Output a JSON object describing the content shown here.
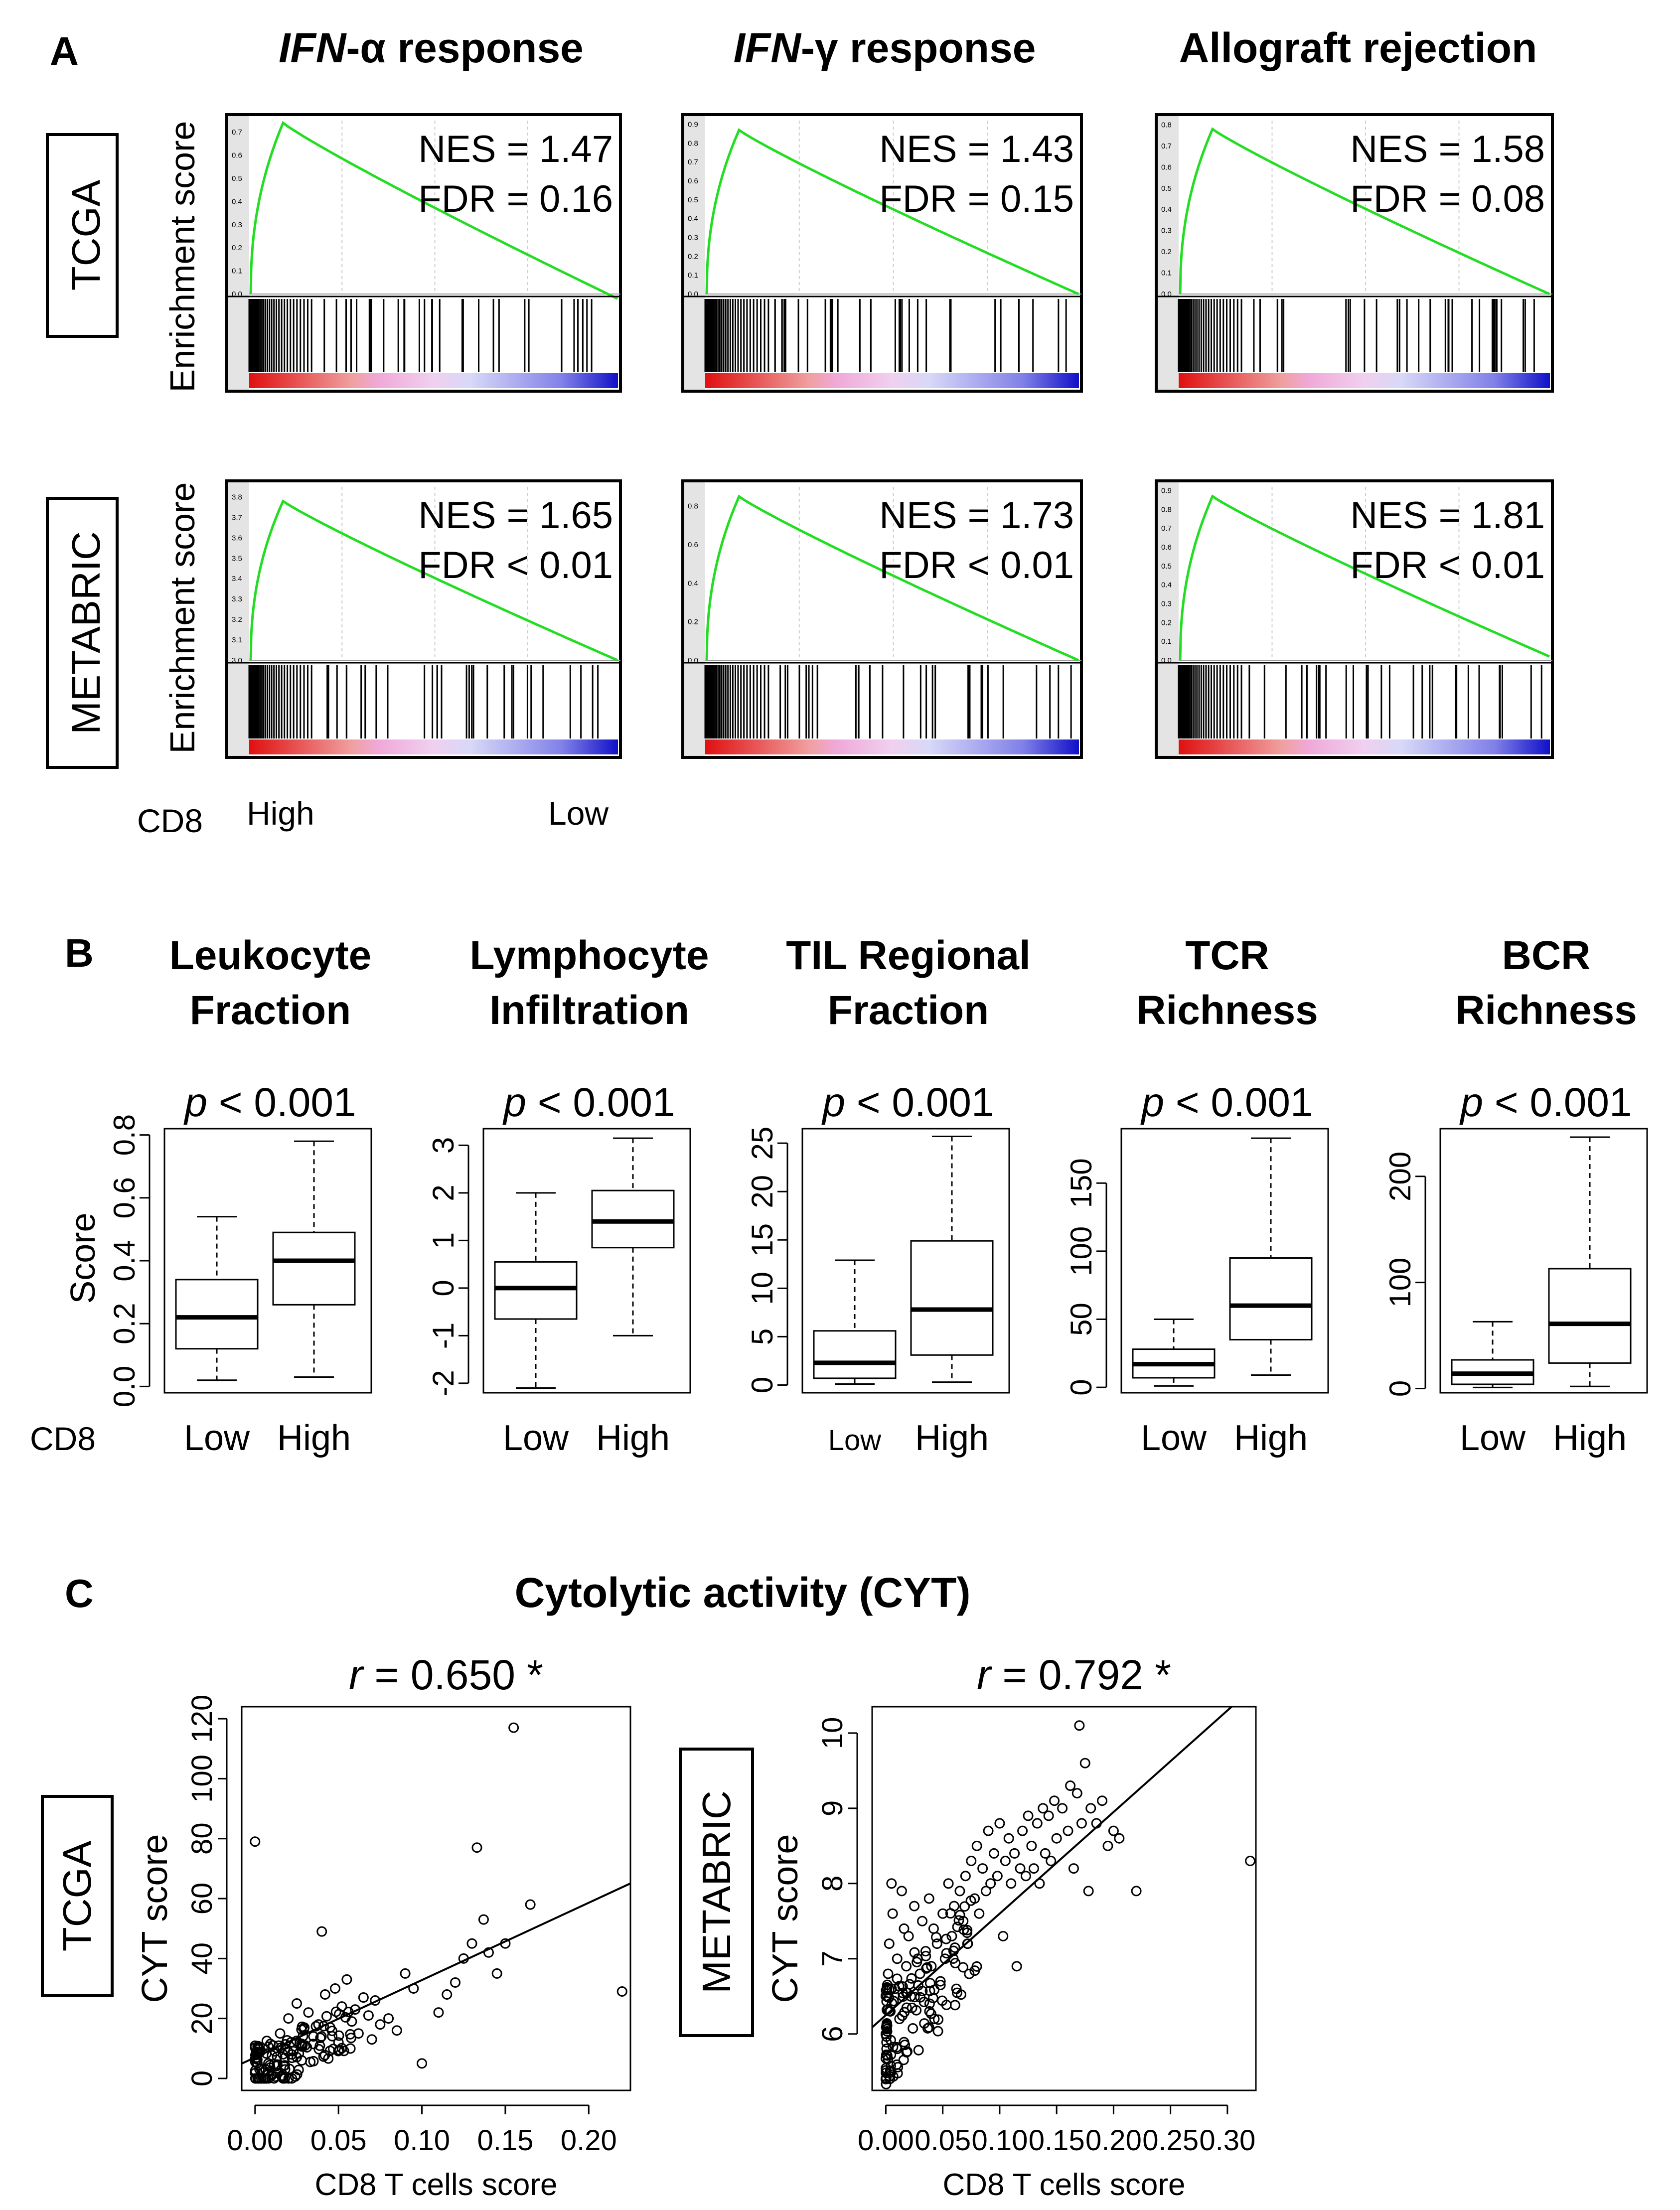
{
  "panel_a": {
    "letter": "A",
    "columns": [
      {
        "prefix": "IFN",
        "suffix": "-α response"
      },
      {
        "prefix": "IFN",
        "suffix": "-γ response"
      },
      {
        "prefix": "",
        "suffix": "Allograft rejection"
      }
    ],
    "rows": [
      "TCGA",
      "METABRIC"
    ],
    "ylabel": "Enrichment score",
    "axis_caption": "CD8",
    "high_label": "High",
    "low_label": "Low"
  },
  "panel_b": {
    "letter": "B",
    "axis_caption": "CD8"
  },
  "panel_c": {
    "letter": "C",
    "title": "Cytolytic activity (CYT)",
    "row_labels": [
      "TCGA",
      "METABRIC"
    ]
  },
  "colors": {
    "curve": "#22dd22",
    "hit": "#000000",
    "high": "#e01010",
    "pink": "#f0a8d8",
    "light": "#d8d8f8",
    "low": "#1010c8"
  },
  "chart_data": [
    {
      "type": "line",
      "name": "gsea-tcga-ifna",
      "ylabel": "Enrichment score",
      "yticks": [
        "0.0",
        "0.1",
        "0.2",
        "0.3",
        "0.4",
        "0.5",
        "0.6",
        "0.7"
      ],
      "ylim": [
        0,
        0.75
      ],
      "peak": 0.74,
      "end": -0.02,
      "annotation": [
        "NES = 1.47",
        "FDR = 0.16"
      ]
    },
    {
      "type": "line",
      "name": "gsea-tcga-ifng",
      "yticks": [
        "0.0",
        "0.1",
        "0.2",
        "0.3",
        "0.4",
        "0.5",
        "0.6",
        "0.7",
        "0.8",
        "0.9"
      ],
      "ylim": [
        0,
        0.92
      ],
      "peak": 0.87,
      "end": 0.0,
      "annotation": [
        "NES = 1.43",
        "FDR = 0.15"
      ]
    },
    {
      "type": "line",
      "name": "gsea-tcga-allograft",
      "yticks": [
        "0.0",
        "0.1",
        "0.2",
        "0.3",
        "0.4",
        "0.5",
        "0.6",
        "0.7",
        "0.8"
      ],
      "ylim": [
        0,
        0.82
      ],
      "peak": 0.78,
      "end": 0.0,
      "annotation": [
        "NES = 1.58",
        "FDR = 0.08"
      ]
    },
    {
      "type": "line",
      "name": "gsea-metabric-ifna",
      "ylabel": "Enrichment score",
      "yticks": [
        "3.0",
        "3.1",
        "3.2",
        "3.3",
        "3.4",
        "3.5",
        "3.6",
        "3.7",
        "3.8"
      ],
      "ylim": [
        3.0,
        3.85
      ],
      "peak": 3.78,
      "end": 3.0,
      "annotation": [
        "NES = 1.65",
        "FDR < 0.01"
      ]
    },
    {
      "type": "line",
      "name": "gsea-metabric-ifng",
      "yticks": [
        "0.0",
        "0.2",
        "0.4",
        "0.6",
        "0.8"
      ],
      "ylim": [
        0,
        0.9
      ],
      "peak": 0.85,
      "end": 0.0,
      "annotation": [
        "NES = 1.73",
        "FDR < 0.01"
      ]
    },
    {
      "type": "line",
      "name": "gsea-metabric-allograft",
      "yticks": [
        "0.0",
        "0.1",
        "0.2",
        "0.3",
        "0.4",
        "0.5",
        "0.6",
        "0.7",
        "0.8",
        "0.9"
      ],
      "ylim": [
        0,
        0.92
      ],
      "peak": 0.87,
      "end": 0.02,
      "annotation": [
        "NES = 1.81",
        "FDR < 0.01"
      ]
    },
    {
      "type": "box",
      "name": "box-leukocyte",
      "title": [
        "Leukocyte",
        "Fraction"
      ],
      "subtitle": "p < 0.001",
      "ylabel": "Score",
      "categories": [
        "Low",
        "High"
      ],
      "yticks": [
        "0.0",
        "0.2",
        "0.4",
        "0.6",
        "0.8"
      ],
      "ylim": [
        -0.02,
        0.82
      ],
      "boxes": [
        {
          "min": 0.02,
          "q1": 0.12,
          "median": 0.22,
          "q3": 0.34,
          "max": 0.54
        },
        {
          "min": 0.03,
          "q1": 0.26,
          "median": 0.4,
          "q3": 0.49,
          "max": 0.78
        }
      ]
    },
    {
      "type": "box",
      "name": "box-lymphocyte",
      "title": [
        "Lymphocyte",
        "Infiltration"
      ],
      "subtitle": "p < 0.001",
      "categories": [
        "Low",
        "High"
      ],
      "yticks": [
        "-2",
        "-1",
        "0",
        "1",
        "2",
        "3"
      ],
      "ylim": [
        -2.2,
        3.35
      ],
      "boxes": [
        {
          "min": -2.1,
          "q1": -0.65,
          "median": 0.0,
          "q3": 0.55,
          "max": 2.0
        },
        {
          "min": -1.0,
          "q1": 0.85,
          "median": 1.4,
          "q3": 2.05,
          "max": 3.15
        }
      ]
    },
    {
      "type": "box",
      "name": "box-til",
      "title": [
        "TIL Regional",
        "Fraction"
      ],
      "subtitle": "p < 0.001",
      "categories": [
        "Low",
        "High"
      ],
      "yticks": [
        "0",
        "5",
        "10",
        "15",
        "20",
        "25"
      ],
      "ylim": [
        -0.8,
        26.5
      ],
      "boxes": [
        {
          "min": 0.1,
          "q1": 0.7,
          "median": 2.3,
          "q3": 5.6,
          "max": 12.9
        },
        {
          "min": 0.3,
          "q1": 3.1,
          "median": 7.8,
          "q3": 14.9,
          "max": 25.7
        }
      ]
    },
    {
      "type": "box",
      "name": "box-tcr",
      "title": [
        "TCR",
        "Richness"
      ],
      "subtitle": "p < 0.001",
      "categories": [
        "Low",
        "High"
      ],
      "yticks": [
        "0",
        "50",
        "100",
        "150"
      ],
      "ylim": [
        -4,
        190
      ],
      "boxes": [
        {
          "min": 1,
          "q1": 7,
          "median": 17,
          "q3": 28,
          "max": 50
        },
        {
          "min": 9,
          "q1": 35,
          "median": 60,
          "q3": 95,
          "max": 183
        }
      ]
    },
    {
      "type": "box",
      "name": "box-bcr",
      "title": [
        "BCR",
        "Richness"
      ],
      "subtitle": "p < 0.001",
      "categories": [
        "Low",
        "High"
      ],
      "yticks": [
        "0",
        "100",
        "200"
      ],
      "ylim": [
        -4,
        245
      ],
      "boxes": [
        {
          "min": 1,
          "q1": 4,
          "median": 14,
          "q3": 27,
          "max": 63
        },
        {
          "min": 2,
          "q1": 24,
          "median": 61,
          "q3": 113,
          "max": 237
        }
      ]
    },
    {
      "type": "scatter",
      "name": "scatter-tcga",
      "subtitle_prefix": "r",
      "subtitle_rest": " = 0.650 *",
      "xlabel": "CD8 T cells score",
      "ylabel": "CYT score",
      "xticks": [
        "0.00",
        "0.05",
        "0.10",
        "0.15",
        "0.20"
      ],
      "xtick_values": [
        0,
        0.05,
        0.1,
        0.15,
        0.2
      ],
      "yticks": [
        "0",
        "20",
        "40",
        "60",
        "80",
        "100",
        "120"
      ],
      "ytick_values": [
        0,
        20,
        40,
        60,
        80,
        100,
        120
      ],
      "xlim": [
        -0.008,
        0.225
      ],
      "ylim": [
        -4,
        124
      ],
      "fit": {
        "slope": 258,
        "intercept": 7
      },
      "points": [
        [
          0.0,
          79
        ],
        [
          0.005,
          2
        ],
        [
          0.008,
          5
        ],
        [
          0.01,
          1
        ],
        [
          0.012,
          9
        ],
        [
          0.015,
          15
        ],
        [
          0.018,
          3
        ],
        [
          0.02,
          20
        ],
        [
          0.022,
          8
        ],
        [
          0.025,
          25
        ],
        [
          0.028,
          6
        ],
        [
          0.03,
          11
        ],
        [
          0.032,
          22
        ],
        [
          0.035,
          14
        ],
        [
          0.038,
          18
        ],
        [
          0.04,
          49
        ],
        [
          0.042,
          28
        ],
        [
          0.045,
          17
        ],
        [
          0.048,
          30
        ],
        [
          0.05,
          12
        ],
        [
          0.052,
          24
        ],
        [
          0.055,
          33
        ],
        [
          0.058,
          19
        ],
        [
          0.06,
          23
        ],
        [
          0.062,
          15
        ],
        [
          0.065,
          27
        ],
        [
          0.068,
          21
        ],
        [
          0.07,
          13
        ],
        [
          0.072,
          26
        ],
        [
          0.075,
          18
        ],
        [
          0.08,
          20
        ],
        [
          0.085,
          16
        ],
        [
          0.09,
          35
        ],
        [
          0.095,
          30
        ],
        [
          0.1,
          5
        ],
        [
          0.11,
          22
        ],
        [
          0.115,
          28
        ],
        [
          0.12,
          32
        ],
        [
          0.125,
          40
        ],
        [
          0.13,
          45
        ],
        [
          0.133,
          77
        ],
        [
          0.137,
          53
        ],
        [
          0.14,
          42
        ],
        [
          0.145,
          35
        ],
        [
          0.15,
          45
        ],
        [
          0.155,
          117
        ],
        [
          0.165,
          58
        ],
        [
          0.22,
          29
        ]
      ]
    },
    {
      "type": "scatter",
      "name": "scatter-metabric",
      "subtitle_prefix": "r",
      "subtitle_rest": " = 0.792 *",
      "xlabel": "CD8 T cells score",
      "ylabel": "CYT score",
      "xticks": [
        "0.00",
        "0.05",
        "0.10",
        "0.15",
        "0.20",
        "0.25",
        "0.30"
      ],
      "xtick_values": [
        0,
        0.05,
        0.1,
        0.15,
        0.2,
        0.25,
        0.3
      ],
      "yticks": [
        "6",
        "7",
        "8",
        "9",
        "10"
      ],
      "ytick_values": [
        6,
        7,
        8,
        9,
        10
      ],
      "xlim": [
        -0.012,
        0.325
      ],
      "ylim": [
        5.25,
        10.35
      ],
      "fit": {
        "slope": 13.5,
        "intercept": 6.25
      },
      "points": [
        [
          0.0,
          5.4
        ],
        [
          0.0,
          6.0
        ],
        [
          0.002,
          6.8
        ],
        [
          0.003,
          7.2
        ],
        [
          0.004,
          6.3
        ],
        [
          0.005,
          8.0
        ],
        [
          0.006,
          7.6
        ],
        [
          0.008,
          6.6
        ],
        [
          0.01,
          7.0
        ],
        [
          0.012,
          6.2
        ],
        [
          0.014,
          7.9
        ],
        [
          0.016,
          7.4
        ],
        [
          0.018,
          6.9
        ],
        [
          0.02,
          7.3
        ],
        [
          0.022,
          6.5
        ],
        [
          0.025,
          7.7
        ],
        [
          0.028,
          7.0
        ],
        [
          0.03,
          6.8
        ],
        [
          0.032,
          7.5
        ],
        [
          0.035,
          7.1
        ],
        [
          0.038,
          7.8
        ],
        [
          0.04,
          6.9
        ],
        [
          0.042,
          7.4
        ],
        [
          0.045,
          7.2
        ],
        [
          0.048,
          6.7
        ],
        [
          0.05,
          7.6
        ],
        [
          0.052,
          7.0
        ],
        [
          0.055,
          8.0
        ],
        [
          0.058,
          7.3
        ],
        [
          0.06,
          7.7
        ],
        [
          0.062,
          6.6
        ],
        [
          0.065,
          7.9
        ],
        [
          0.068,
          7.5
        ],
        [
          0.07,
          8.1
        ],
        [
          0.072,
          7.2
        ],
        [
          0.075,
          8.3
        ],
        [
          0.078,
          7.8
        ],
        [
          0.08,
          8.5
        ],
        [
          0.082,
          7.6
        ],
        [
          0.085,
          8.2
        ],
        [
          0.088,
          7.9
        ],
        [
          0.09,
          8.7
        ],
        [
          0.092,
          8.0
        ],
        [
          0.095,
          8.4
        ],
        [
          0.098,
          8.1
        ],
        [
          0.1,
          8.8
        ],
        [
          0.103,
          7.3
        ],
        [
          0.105,
          8.3
        ],
        [
          0.108,
          8.6
        ],
        [
          0.11,
          8.0
        ],
        [
          0.113,
          8.4
        ],
        [
          0.115,
          6.9
        ],
        [
          0.118,
          8.2
        ],
        [
          0.12,
          8.7
        ],
        [
          0.123,
          8.1
        ],
        [
          0.125,
          8.9
        ],
        [
          0.128,
          8.5
        ],
        [
          0.13,
          8.2
        ],
        [
          0.133,
          8.8
        ],
        [
          0.135,
          8.0
        ],
        [
          0.138,
          9.0
        ],
        [
          0.14,
          8.4
        ],
        [
          0.143,
          8.9
        ],
        [
          0.145,
          8.3
        ],
        [
          0.148,
          9.1
        ],
        [
          0.15,
          8.6
        ],
        [
          0.155,
          9.0
        ],
        [
          0.16,
          8.7
        ],
        [
          0.162,
          9.3
        ],
        [
          0.165,
          8.2
        ],
        [
          0.168,
          9.2
        ],
        [
          0.17,
          10.1
        ],
        [
          0.172,
          8.8
        ],
        [
          0.175,
          9.6
        ],
        [
          0.178,
          7.9
        ],
        [
          0.18,
          9.0
        ],
        [
          0.185,
          8.8
        ],
        [
          0.19,
          9.1
        ],
        [
          0.195,
          8.5
        ],
        [
          0.2,
          8.7
        ],
        [
          0.205,
          8.6
        ],
        [
          0.22,
          7.9
        ],
        [
          0.32,
          8.3
        ]
      ]
    }
  ]
}
